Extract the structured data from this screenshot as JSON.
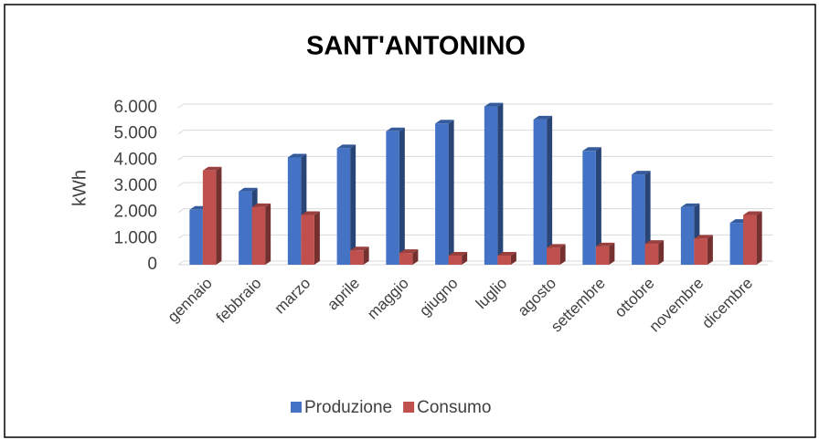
{
  "chart_data": {
    "type": "bar",
    "title": "SANT'ANTONINO",
    "y_label": "kWh",
    "categories": [
      "gennaio",
      "febbraio",
      "marzo",
      "aprile",
      "maggio",
      "giugno",
      "luglio",
      "agosto",
      "settembre",
      "ottobre",
      "novembre",
      "dicembre"
    ],
    "series": [
      {
        "name": "Produzione",
        "color": "#4472c4",
        "values": [
          2100,
          2800,
          4100,
          4450,
          5100,
          5400,
          6050,
          5550,
          4350,
          3450,
          2200,
          1600
        ]
      },
      {
        "name": "Consumo",
        "color": "#c0504d",
        "values": [
          3600,
          2200,
          1900,
          550,
          450,
          350,
          350,
          650,
          700,
          800,
          1000,
          1900
        ]
      }
    ],
    "ylim": [
      0,
      6000
    ],
    "yticks": [
      0,
      {
        "value": 1000,
        "label": "1.000"
      },
      {
        "value": 2000,
        "label": "2.000"
      },
      {
        "value": 3000,
        "label": "3.000"
      },
      {
        "value": 4000,
        "label": "4.000"
      },
      {
        "value": 5000,
        "label": "5.000"
      },
      {
        "value": 6000,
        "label": "6.000"
      }
    ],
    "grid": true,
    "legend": "bottom"
  }
}
